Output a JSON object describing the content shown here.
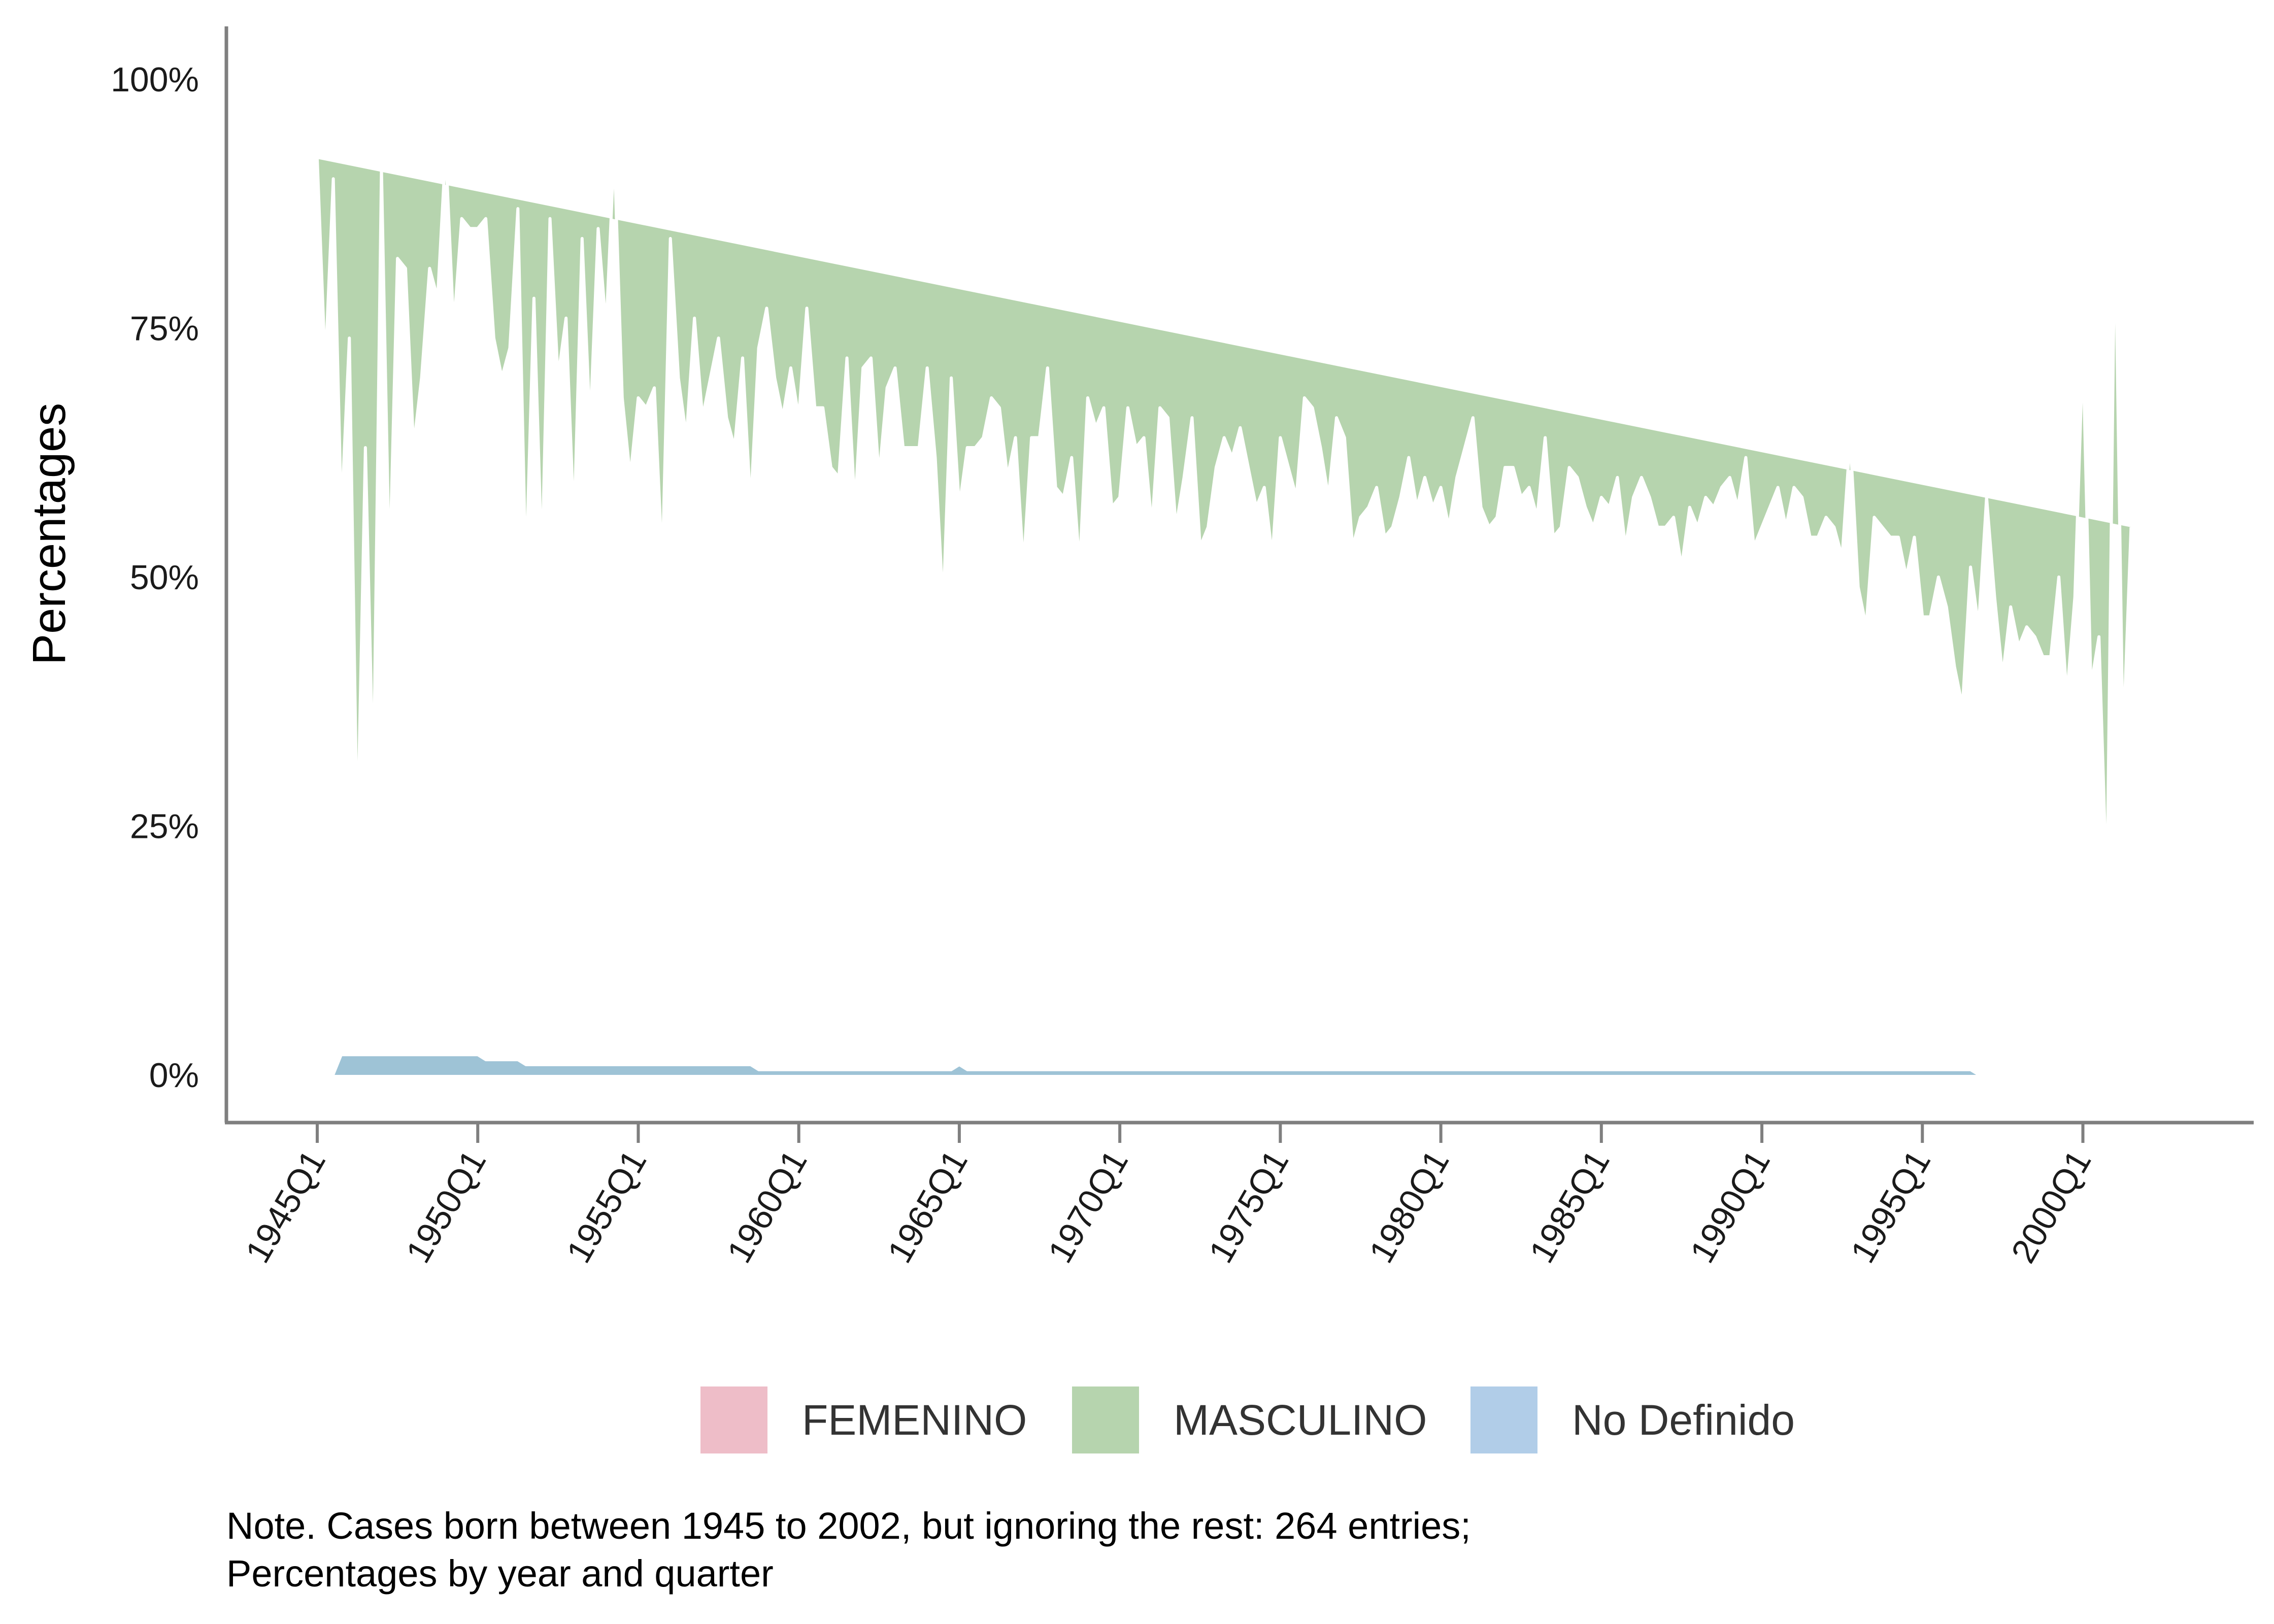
{
  "chart_data": {
    "type": "area",
    "stacked": true,
    "normalized": true,
    "ylabel": "Percentages",
    "xlabel": "",
    "ylim": [
      0,
      1
    ],
    "y_ticks": [
      0,
      0.25,
      0.5,
      0.75,
      1.0
    ],
    "y_tick_labels": [
      "0%",
      "25%",
      "50%",
      "75%",
      "100%"
    ],
    "x_range": [
      1945.0,
      2002.0
    ],
    "x_ticks": [
      1945,
      1950,
      1955,
      1960,
      1965,
      1970,
      1975,
      1980,
      1985,
      1990,
      1995,
      2000
    ],
    "x_tick_labels": [
      "1945Q1",
      "1950Q1",
      "1955Q1",
      "1960Q1",
      "1965Q1",
      "1970Q1",
      "1975Q1",
      "1980Q1",
      "1985Q1",
      "1990Q1",
      "1995Q1",
      "2000Q1"
    ],
    "legend_position": "bottom",
    "grid": false,
    "series": [
      {
        "name": "FEMENINO",
        "color": "#EEBDC8"
      },
      {
        "name": "MASCULINO",
        "color": "#B6D4AE"
      },
      {
        "name": "No Definido",
        "color": "#B1CDE8"
      }
    ],
    "x": [
      1945.0,
      1945.25,
      1945.5,
      1945.75,
      1946.0,
      1946.25,
      1946.5,
      1946.75,
      1947.0,
      1947.25,
      1947.5,
      1947.75,
      1948.0,
      1948.25,
      1948.5,
      1948.75,
      1949.0,
      1949.25,
      1949.5,
      1949.75,
      1950.0,
      1950.25,
      1950.5,
      1950.75,
      1951.0,
      1951.25,
      1951.5,
      1951.75,
      1952.0,
      1952.25,
      1952.5,
      1952.75,
      1953.0,
      1953.25,
      1953.5,
      1953.75,
      1954.0,
      1954.25,
      1954.5,
      1954.75,
      1955.0,
      1955.25,
      1955.5,
      1955.75,
      1956.0,
      1956.25,
      1956.5,
      1956.75,
      1957.0,
      1957.25,
      1957.5,
      1957.75,
      1958.0,
      1958.25,
      1958.5,
      1958.75,
      1959.0,
      1959.25,
      1959.5,
      1959.75,
      1960.0,
      1960.25,
      1960.5,
      1960.75,
      1961.0,
      1961.25,
      1961.5,
      1961.75,
      1962.0,
      1962.25,
      1962.5,
      1962.75,
      1963.0,
      1963.25,
      1963.5,
      1963.75,
      1964.0,
      1964.25,
      1964.5,
      1964.75,
      1965.0,
      1965.25,
      1965.5,
      1965.75,
      1966.0,
      1966.25,
      1966.5,
      1966.75,
      1967.0,
      1967.25,
      1967.5,
      1967.75,
      1968.0,
      1968.25,
      1968.5,
      1968.75,
      1969.0,
      1969.25,
      1969.5,
      1969.75,
      1970.0,
      1970.25,
      1970.5,
      1970.75,
      1971.0,
      1971.25,
      1971.5,
      1971.75,
      1972.0,
      1972.25,
      1972.5,
      1972.75,
      1973.0,
      1973.25,
      1973.5,
      1973.75,
      1974.0,
      1974.25,
      1974.5,
      1974.75,
      1975.0,
      1975.25,
      1975.5,
      1975.75,
      1976.0,
      1976.25,
      1976.5,
      1976.75,
      1977.0,
      1977.25,
      1977.5,
      1977.75,
      1978.0,
      1978.25,
      1978.5,
      1978.75,
      1979.0,
      1979.25,
      1979.5,
      1979.75,
      1980.0,
      1980.25,
      1980.5,
      1980.75,
      1981.0,
      1981.25,
      1981.5,
      1981.75,
      1982.0,
      1982.25,
      1982.5,
      1982.75,
      1983.0,
      1983.25,
      1983.5,
      1983.75,
      1984.0,
      1984.25,
      1984.5,
      1984.75,
      1985.0,
      1985.25,
      1985.5,
      1985.75,
      1986.0,
      1986.25,
      1986.5,
      1986.75,
      1987.0,
      1987.25,
      1987.5,
      1987.75,
      1988.0,
      1988.25,
      1988.5,
      1988.75,
      1989.0,
      1989.25,
      1989.5,
      1989.75,
      1990.0,
      1990.25,
      1990.5,
      1990.75,
      1991.0,
      1991.25,
      1991.5,
      1991.75,
      1992.0,
      1992.25,
      1992.5,
      1992.75,
      1993.0,
      1993.25,
      1993.5,
      1993.75,
      1994.0,
      1994.25,
      1994.5,
      1994.75,
      1995.0,
      1995.25,
      1995.5,
      1995.75,
      1996.0,
      1996.25,
      1996.5,
      1996.75,
      1997.0,
      1997.25,
      1997.5,
      1997.75,
      1998.0,
      1998.25,
      1998.5,
      1998.75,
      1999.0,
      1999.25,
      1999.5,
      1999.75,
      2000.0,
      2000.25,
      2000.5,
      2000.75,
      2001.0,
      2001.25,
      2001.5,
      2001.75,
      2002.0
    ],
    "no_definido": [
      0,
      0,
      0,
      0.02,
      0.02,
      0.02,
      0.02,
      0.02,
      0.02,
      0.02,
      0.02,
      0.02,
      0.02,
      0.02,
      0.02,
      0.02,
      0.02,
      0.02,
      0.02,
      0.02,
      0.02,
      0.015,
      0.015,
      0.015,
      0.015,
      0.015,
      0.01,
      0.01,
      0.01,
      0.01,
      0.01,
      0.01,
      0.01,
      0.01,
      0.01,
      0.01,
      0.01,
      0.01,
      0.01,
      0.01,
      0.01,
      0.01,
      0.01,
      0.01,
      0.01,
      0.01,
      0.01,
      0.01,
      0.01,
      0.01,
      0.01,
      0.01,
      0.01,
      0.01,
      0.01,
      0.005,
      0.005,
      0.005,
      0.005,
      0.005,
      0.005,
      0.005,
      0.005,
      0.005,
      0.005,
      0.005,
      0.005,
      0.005,
      0.005,
      0.005,
      0.005,
      0.005,
      0.005,
      0.005,
      0.005,
      0.005,
      0.005,
      0.005,
      0.005,
      0.005,
      0.01,
      0.005,
      0.005,
      0.005,
      0.005,
      0.005,
      0.005,
      0.005,
      0.005,
      0.005,
      0.005,
      0.005,
      0.005,
      0.005,
      0.005,
      0.005,
      0.005,
      0.005,
      0.005,
      0.005,
      0.005,
      0.005,
      0.005,
      0.005,
      0.005,
      0.005,
      0.005,
      0.005,
      0.005,
      0.005,
      0.005,
      0.005,
      0.005,
      0.005,
      0.005,
      0.005,
      0.005,
      0.005,
      0.005,
      0.005,
      0.005,
      0.005,
      0.005,
      0.005,
      0.005,
      0.005,
      0.005,
      0.005,
      0.005,
      0.005,
      0.005,
      0.005,
      0.005,
      0.005,
      0.005,
      0.005,
      0.005,
      0.005,
      0.005,
      0.005,
      0.005,
      0.005,
      0.005,
      0.005,
      0.005,
      0.005,
      0.005,
      0.005,
      0.005,
      0.005,
      0.005,
      0.005,
      0.005,
      0.005,
      0.005,
      0.005,
      0.005,
      0.005,
      0.005,
      0.005,
      0.005,
      0.005,
      0.005,
      0.005,
      0.005,
      0.005,
      0.005,
      0.005,
      0.005,
      0.005,
      0.005,
      0.005,
      0.005,
      0.005,
      0.005,
      0.005,
      0.005,
      0.005,
      0.005,
      0.005,
      0.005,
      0.005,
      0.005,
      0.005,
      0.005,
      0.005,
      0.005,
      0.005,
      0.005,
      0.005,
      0.005,
      0.005,
      0.005,
      0.005,
      0.005,
      0.005,
      0.005,
      0.005,
      0.005,
      0.005,
      0.005,
      0.005,
      0.005,
      0.005,
      0.005,
      0.005,
      0.005,
      0,
      0,
      0,
      0,
      0,
      0,
      0,
      0,
      0,
      0,
      0,
      0,
      0,
      0,
      0,
      0,
      0,
      0,
      0,
      0,
      0,
      0,
      0,
      0,
      0,
      0,
      0,
      0,
      0
    ],
    "masculino_cumulative": [
      0.92,
      0.71,
      0.9,
      0.56,
      0.74,
      0.23,
      0.63,
      0.29,
      0.91,
      0.5,
      0.82,
      0.81,
      0.63,
      0.7,
      0.81,
      0.78,
      0.93,
      0.75,
      0.86,
      0.85,
      0.85,
      0.86,
      0.74,
      0.7,
      0.73,
      0.87,
      0.5,
      0.78,
      0.51,
      0.86,
      0.7,
      0.76,
      0.55,
      0.84,
      0.65,
      0.85,
      0.75,
      0.93,
      0.68,
      0.6,
      0.68,
      0.67,
      0.69,
      0.51,
      0.84,
      0.7,
      0.64,
      0.76,
      0.66,
      0.7,
      0.74,
      0.66,
      0.63,
      0.72,
      0.57,
      0.73,
      0.77,
      0.7,
      0.66,
      0.71,
      0.66,
      0.77,
      0.67,
      0.67,
      0.61,
      0.6,
      0.72,
      0.57,
      0.71,
      0.72,
      0.6,
      0.69,
      0.71,
      0.63,
      0.63,
      0.63,
      0.71,
      0.62,
      0.47,
      0.7,
      0.57,
      0.63,
      0.63,
      0.64,
      0.68,
      0.67,
      0.6,
      0.64,
      0.51,
      0.64,
      0.64,
      0.71,
      0.59,
      0.58,
      0.62,
      0.51,
      0.68,
      0.65,
      0.67,
      0.57,
      0.58,
      0.67,
      0.63,
      0.64,
      0.55,
      0.67,
      0.66,
      0.55,
      0.6,
      0.66,
      0.53,
      0.55,
      0.61,
      0.64,
      0.62,
      0.65,
      0.61,
      0.57,
      0.59,
      0.52,
      0.64,
      0.61,
      0.58,
      0.68,
      0.67,
      0.63,
      0.58,
      0.66,
      0.64,
      0.53,
      0.56,
      0.57,
      0.59,
      0.54,
      0.55,
      0.58,
      0.62,
      0.57,
      0.6,
      0.57,
      0.59,
      0.55,
      0.6,
      0.63,
      0.66,
      0.57,
      0.55,
      0.56,
      0.61,
      0.61,
      0.58,
      0.59,
      0.56,
      0.64,
      0.54,
      0.55,
      0.61,
      0.6,
      0.57,
      0.55,
      0.58,
      0.57,
      0.6,
      0.53,
      0.58,
      0.6,
      0.58,
      0.55,
      0.55,
      0.56,
      0.51,
      0.57,
      0.55,
      0.58,
      0.57,
      0.59,
      0.6,
      0.57,
      0.62,
      0.53,
      0.55,
      0.57,
      0.59,
      0.55,
      0.59,
      0.58,
      0.54,
      0.54,
      0.56,
      0.55,
      0.52,
      0.64,
      0.49,
      0.45,
      0.56,
      0.55,
      0.54,
      0.54,
      0.5,
      0.54,
      0.46,
      0.46,
      0.5,
      0.47,
      0.41,
      0.37,
      0.51,
      0.45,
      0.58,
      0.48,
      0.4,
      0.47,
      0.43,
      0.45,
      0.44,
      0.42,
      0.42,
      0.5,
      0.38,
      0.48,
      0.73,
      0.39,
      0.44,
      0.18,
      0.87,
      0.33,
      0.55
    ]
  },
  "note": {
    "line1": "Note. Cases born between 1945 to 2002, but ignoring the rest: 264 entries;",
    "line2": "Percentages by year and quarter"
  }
}
